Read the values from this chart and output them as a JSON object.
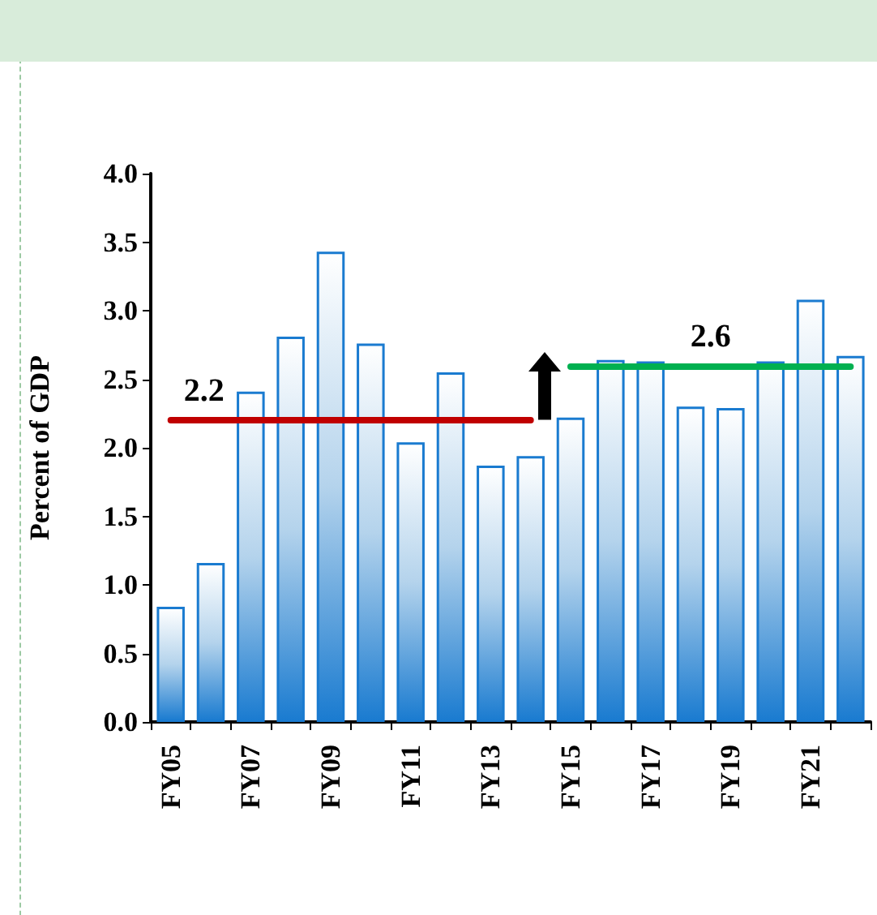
{
  "chart_data": {
    "type": "bar",
    "ylabel": "Percent of GDP",
    "categories": [
      "FY05",
      null,
      "FY07",
      null,
      "FY09",
      null,
      "FY11",
      null,
      "FY13",
      null,
      "FY15",
      null,
      "FY17",
      null,
      "FY19",
      null,
      "FY21",
      null
    ],
    "values": [
      0.84,
      1.16,
      2.41,
      2.81,
      3.43,
      2.76,
      2.04,
      2.55,
      1.87,
      1.94,
      2.22,
      2.64,
      2.63,
      2.3,
      2.29,
      2.63,
      3.08,
      2.67
    ],
    "color": "#1a7bd0",
    "ylim": [
      0,
      4
    ],
    "yticks": [
      {
        "value": 0,
        "label": "0.0"
      },
      {
        "value": 0.5,
        "label": "0.5"
      },
      {
        "value": 1,
        "label": "1.0"
      },
      {
        "value": 1.5,
        "label": "1.5"
      },
      {
        "value": 2,
        "label": "2.0"
      },
      {
        "value": 2.5,
        "label": "2.5"
      },
      {
        "value": 3,
        "label": "3.0"
      },
      {
        "value": 3.5,
        "label": "3.5"
      },
      {
        "value": 4,
        "label": "4.0"
      }
    ],
    "grid": false,
    "ref_lines": [
      {
        "axis": "y",
        "value": 2.2,
        "label": "2.2",
        "color": "#c00000"
      },
      {
        "axis": "y",
        "value": 2.6,
        "label": "2.6",
        "color": "#00b050"
      }
    ]
  }
}
